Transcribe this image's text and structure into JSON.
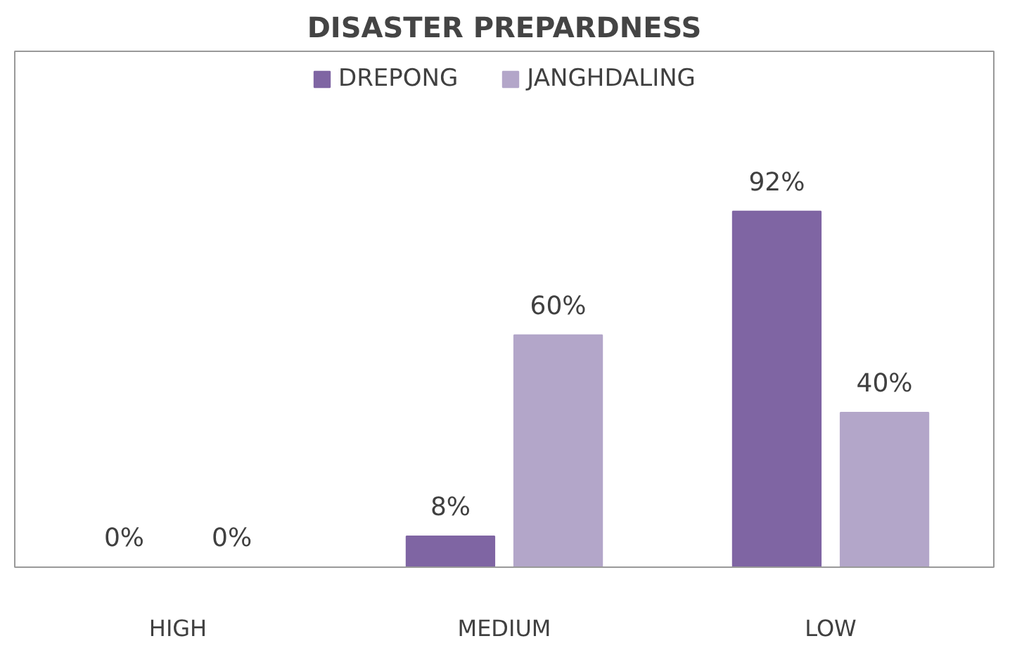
{
  "chart_data": {
    "type": "bar",
    "title": "DISASTER PREPARDNESS",
    "categories": [
      "HIGH",
      "MEDIUM",
      "LOW"
    ],
    "legend": "top",
    "series": [
      {
        "name": "DREPONG",
        "color": "#7f65a3",
        "values": [
          0,
          8,
          92
        ],
        "value_labels": [
          "0%",
          "8%",
          "92%"
        ]
      },
      {
        "name": "JANGHDALING",
        "color": "#b3a6c9",
        "values": [
          0,
          60,
          40
        ],
        "value_labels": [
          "0%",
          "60%",
          "40%"
        ]
      }
    ]
  }
}
